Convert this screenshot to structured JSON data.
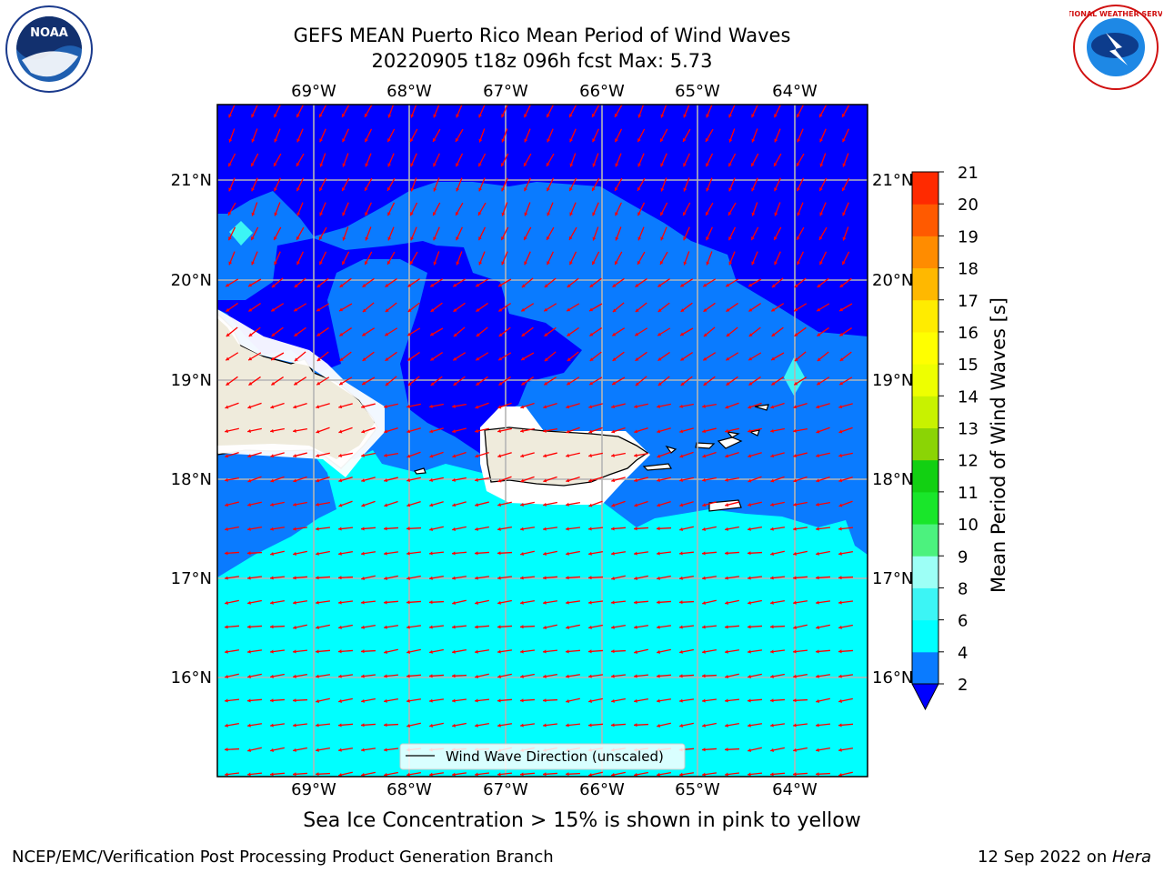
{
  "title": {
    "line1": "GEFS MEAN Puerto Rico Mean Period of Wind Waves",
    "line2": "20220905 t18z 096h fcst   Max: 5.73"
  },
  "subtitle_note": "Sea Ice Concentration > 15% is shown in pink to yellow",
  "footer": {
    "left": "NCEP/EMC/Verification Post Processing Product Generation Branch",
    "right_prefix": "12 Sep 2022 on ",
    "right_machine": "Hera"
  },
  "map": {
    "lon_labels": [
      "69°W",
      "68°W",
      "67°W",
      "66°W",
      "65°W",
      "64°W"
    ],
    "lat_labels": [
      "21°N",
      "20°N",
      "19°N",
      "18°N",
      "17°N",
      "16°N"
    ],
    "legend_label": "Wind Wave Direction (unscaled)",
    "arrow_color": "#ff0000",
    "land_color": "#efebdc"
  },
  "colorbar": {
    "label": "Mean Period of Wind Waves [s]",
    "ticks": [
      "2",
      "4",
      "6",
      "8",
      "9",
      "10",
      "11",
      "12",
      "13",
      "14",
      "15",
      "16",
      "17",
      "18",
      "19",
      "20",
      "21"
    ],
    "colors": [
      "#0a7bff",
      "#00ffff",
      "#3cf5f5",
      "#9dfff6",
      "#4cf27e",
      "#19e62a",
      "#12d012",
      "#8bd405",
      "#c8f200",
      "#eeff00",
      "#ffff00",
      "#ffec00",
      "#ffb800",
      "#ff8c00",
      "#ff5a00",
      "#ff2a00"
    ],
    "under_color": "#0000ff"
  },
  "logos": {
    "noaa_text": "NOAA",
    "nws_text": "NATIONAL WEATHER SERVICE"
  }
}
